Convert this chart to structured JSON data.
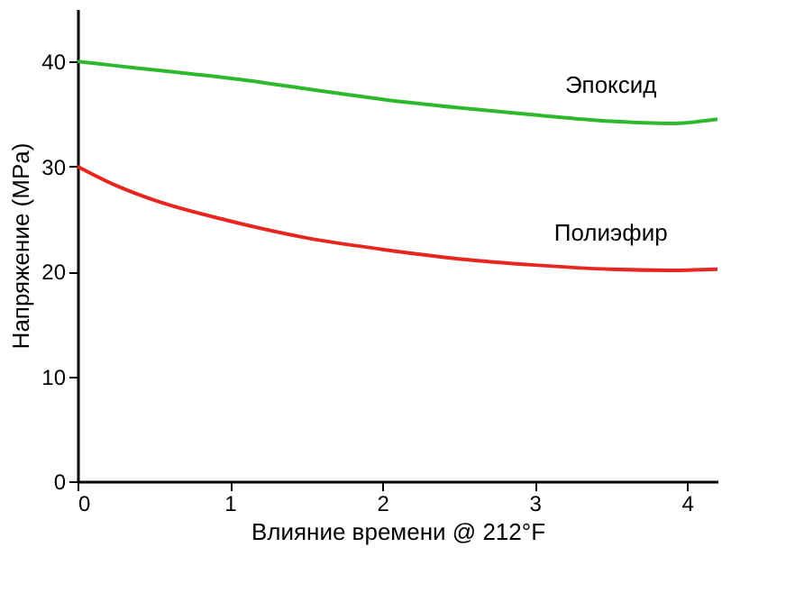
{
  "chart_data": {
    "type": "line",
    "xlabel": "Влияние времени @ 212°F",
    "ylabel": "Напряжение (MPa)",
    "xlim": [
      0,
      4.2
    ],
    "xticks": [
      0,
      1,
      2,
      3,
      4
    ],
    "ylim": [
      0,
      45
    ],
    "yticks": [
      0,
      10,
      20,
      30,
      40
    ],
    "grid": false,
    "legend": false,
    "x": [
      0,
      0.25,
      0.5,
      1,
      1.5,
      2,
      2.5,
      3,
      3.5,
      3.9,
      4.2
    ],
    "series": [
      {
        "name": "Эпоксид",
        "color": "#2db82d",
        "values": [
          40,
          39.6,
          39.2,
          38.4,
          37.4,
          36.4,
          35.6,
          34.9,
          34.3,
          34.1,
          34.5
        ]
      },
      {
        "name": "Полиэфир",
        "color": "#e8251f",
        "values": [
          30,
          28.2,
          26.8,
          24.8,
          23.2,
          22.1,
          21.2,
          20.6,
          20.2,
          20.1,
          20.2
        ]
      }
    ]
  }
}
